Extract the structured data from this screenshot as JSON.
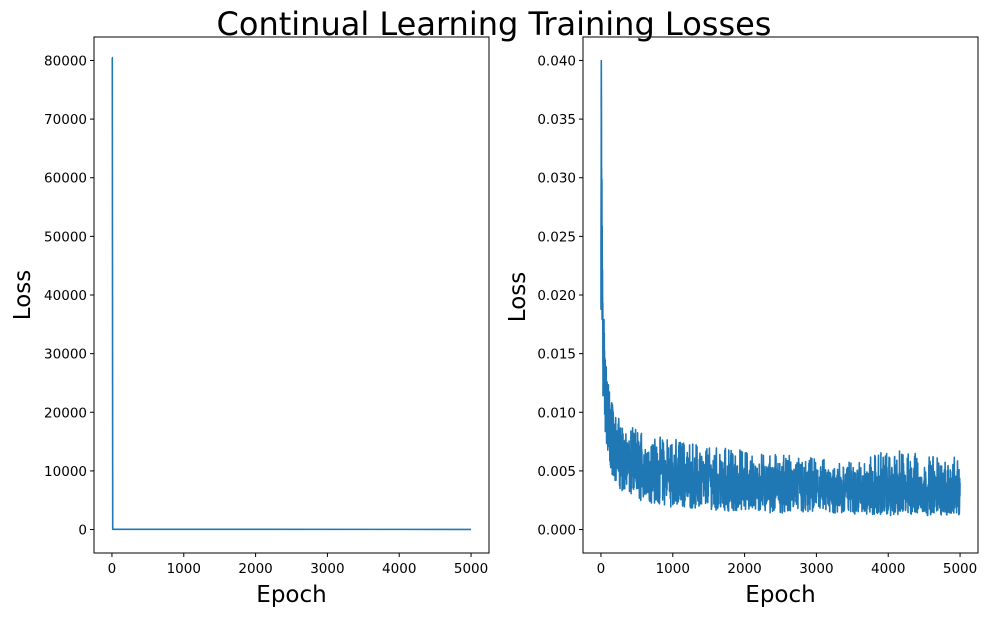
{
  "figure": {
    "suptitle": "Continual Learning Training Losses"
  },
  "colors": {
    "series": "#1f77b4",
    "axes": "#000000",
    "background": "#ffffff"
  },
  "chart_data": [
    {
      "type": "line",
      "xlabel": "Epoch",
      "ylabel": "Loss",
      "xlim": [
        -250,
        5250
      ],
      "ylim": [
        -4000,
        84000
      ],
      "xticks": [
        0,
        1000,
        2000,
        3000,
        4000,
        5000
      ],
      "xtick_labels": [
        "0",
        "1000",
        "2000",
        "3000",
        "4000",
        "5000"
      ],
      "yticks": [
        0,
        10000,
        20000,
        30000,
        40000,
        50000,
        60000,
        70000,
        80000
      ],
      "ytick_labels": [
        "0",
        "10000",
        "20000",
        "30000",
        "40000",
        "50000",
        "60000",
        "70000",
        "80000"
      ],
      "grid": false,
      "series": [
        {
          "x": [
            0,
            5,
            10,
            5000
          ],
          "y": [
            80500,
            80500,
            50,
            20
          ]
        }
      ]
    },
    {
      "type": "line",
      "xlabel": "Epoch",
      "ylabel": "Loss",
      "xlim": [
        -250,
        5250
      ],
      "ylim": [
        -0.002,
        0.042
      ],
      "xticks": [
        0,
        1000,
        2000,
        3000,
        4000,
        5000
      ],
      "xtick_labels": [
        "0",
        "1000",
        "2000",
        "3000",
        "4000",
        "5000"
      ],
      "yticks": [
        0.0,
        0.005,
        0.01,
        0.015,
        0.02,
        0.025,
        0.03,
        0.035,
        0.04
      ],
      "ytick_labels": [
        "0.000",
        "0.005",
        "0.010",
        "0.015",
        "0.020",
        "0.025",
        "0.030",
        "0.035",
        "0.040"
      ],
      "grid": false,
      "series": [
        {
          "x": [
            0,
            5,
            10,
            20,
            30,
            50,
            75,
            100,
            150,
            200,
            300,
            400,
            500,
            700,
            1000,
            1500,
            2000,
            2500,
            3000,
            3500,
            4000,
            4500,
            5000
          ],
          "y": [
            0.018,
            0.04,
            0.025,
            0.02,
            0.016,
            0.013,
            0.011,
            0.0095,
            0.0082,
            0.0072,
            0.0062,
            0.0056,
            0.0052,
            0.0048,
            0.0044,
            0.004,
            0.0037,
            0.0035,
            0.0033,
            0.0032,
            0.0031,
            0.003,
            0.0029
          ],
          "band_low": [
            0.014,
            0.03,
            0.019,
            0.014,
            0.011,
            0.009,
            0.0075,
            0.006,
            0.0048,
            0.004,
            0.0032,
            0.0028,
            0.0025,
            0.0022,
            0.0019,
            0.0017,
            0.0015,
            0.0014,
            0.0013,
            0.0013,
            0.0012,
            0.0012,
            0.0012
          ],
          "band_high": [
            0.022,
            0.04,
            0.032,
            0.026,
            0.021,
            0.017,
            0.014,
            0.0125,
            0.0112,
            0.0098,
            0.0092,
            0.0088,
            0.0086,
            0.008,
            0.0078,
            0.0072,
            0.0068,
            0.0064,
            0.0061,
            0.0058,
            0.0068,
            0.0065,
            0.0062
          ]
        }
      ]
    }
  ]
}
